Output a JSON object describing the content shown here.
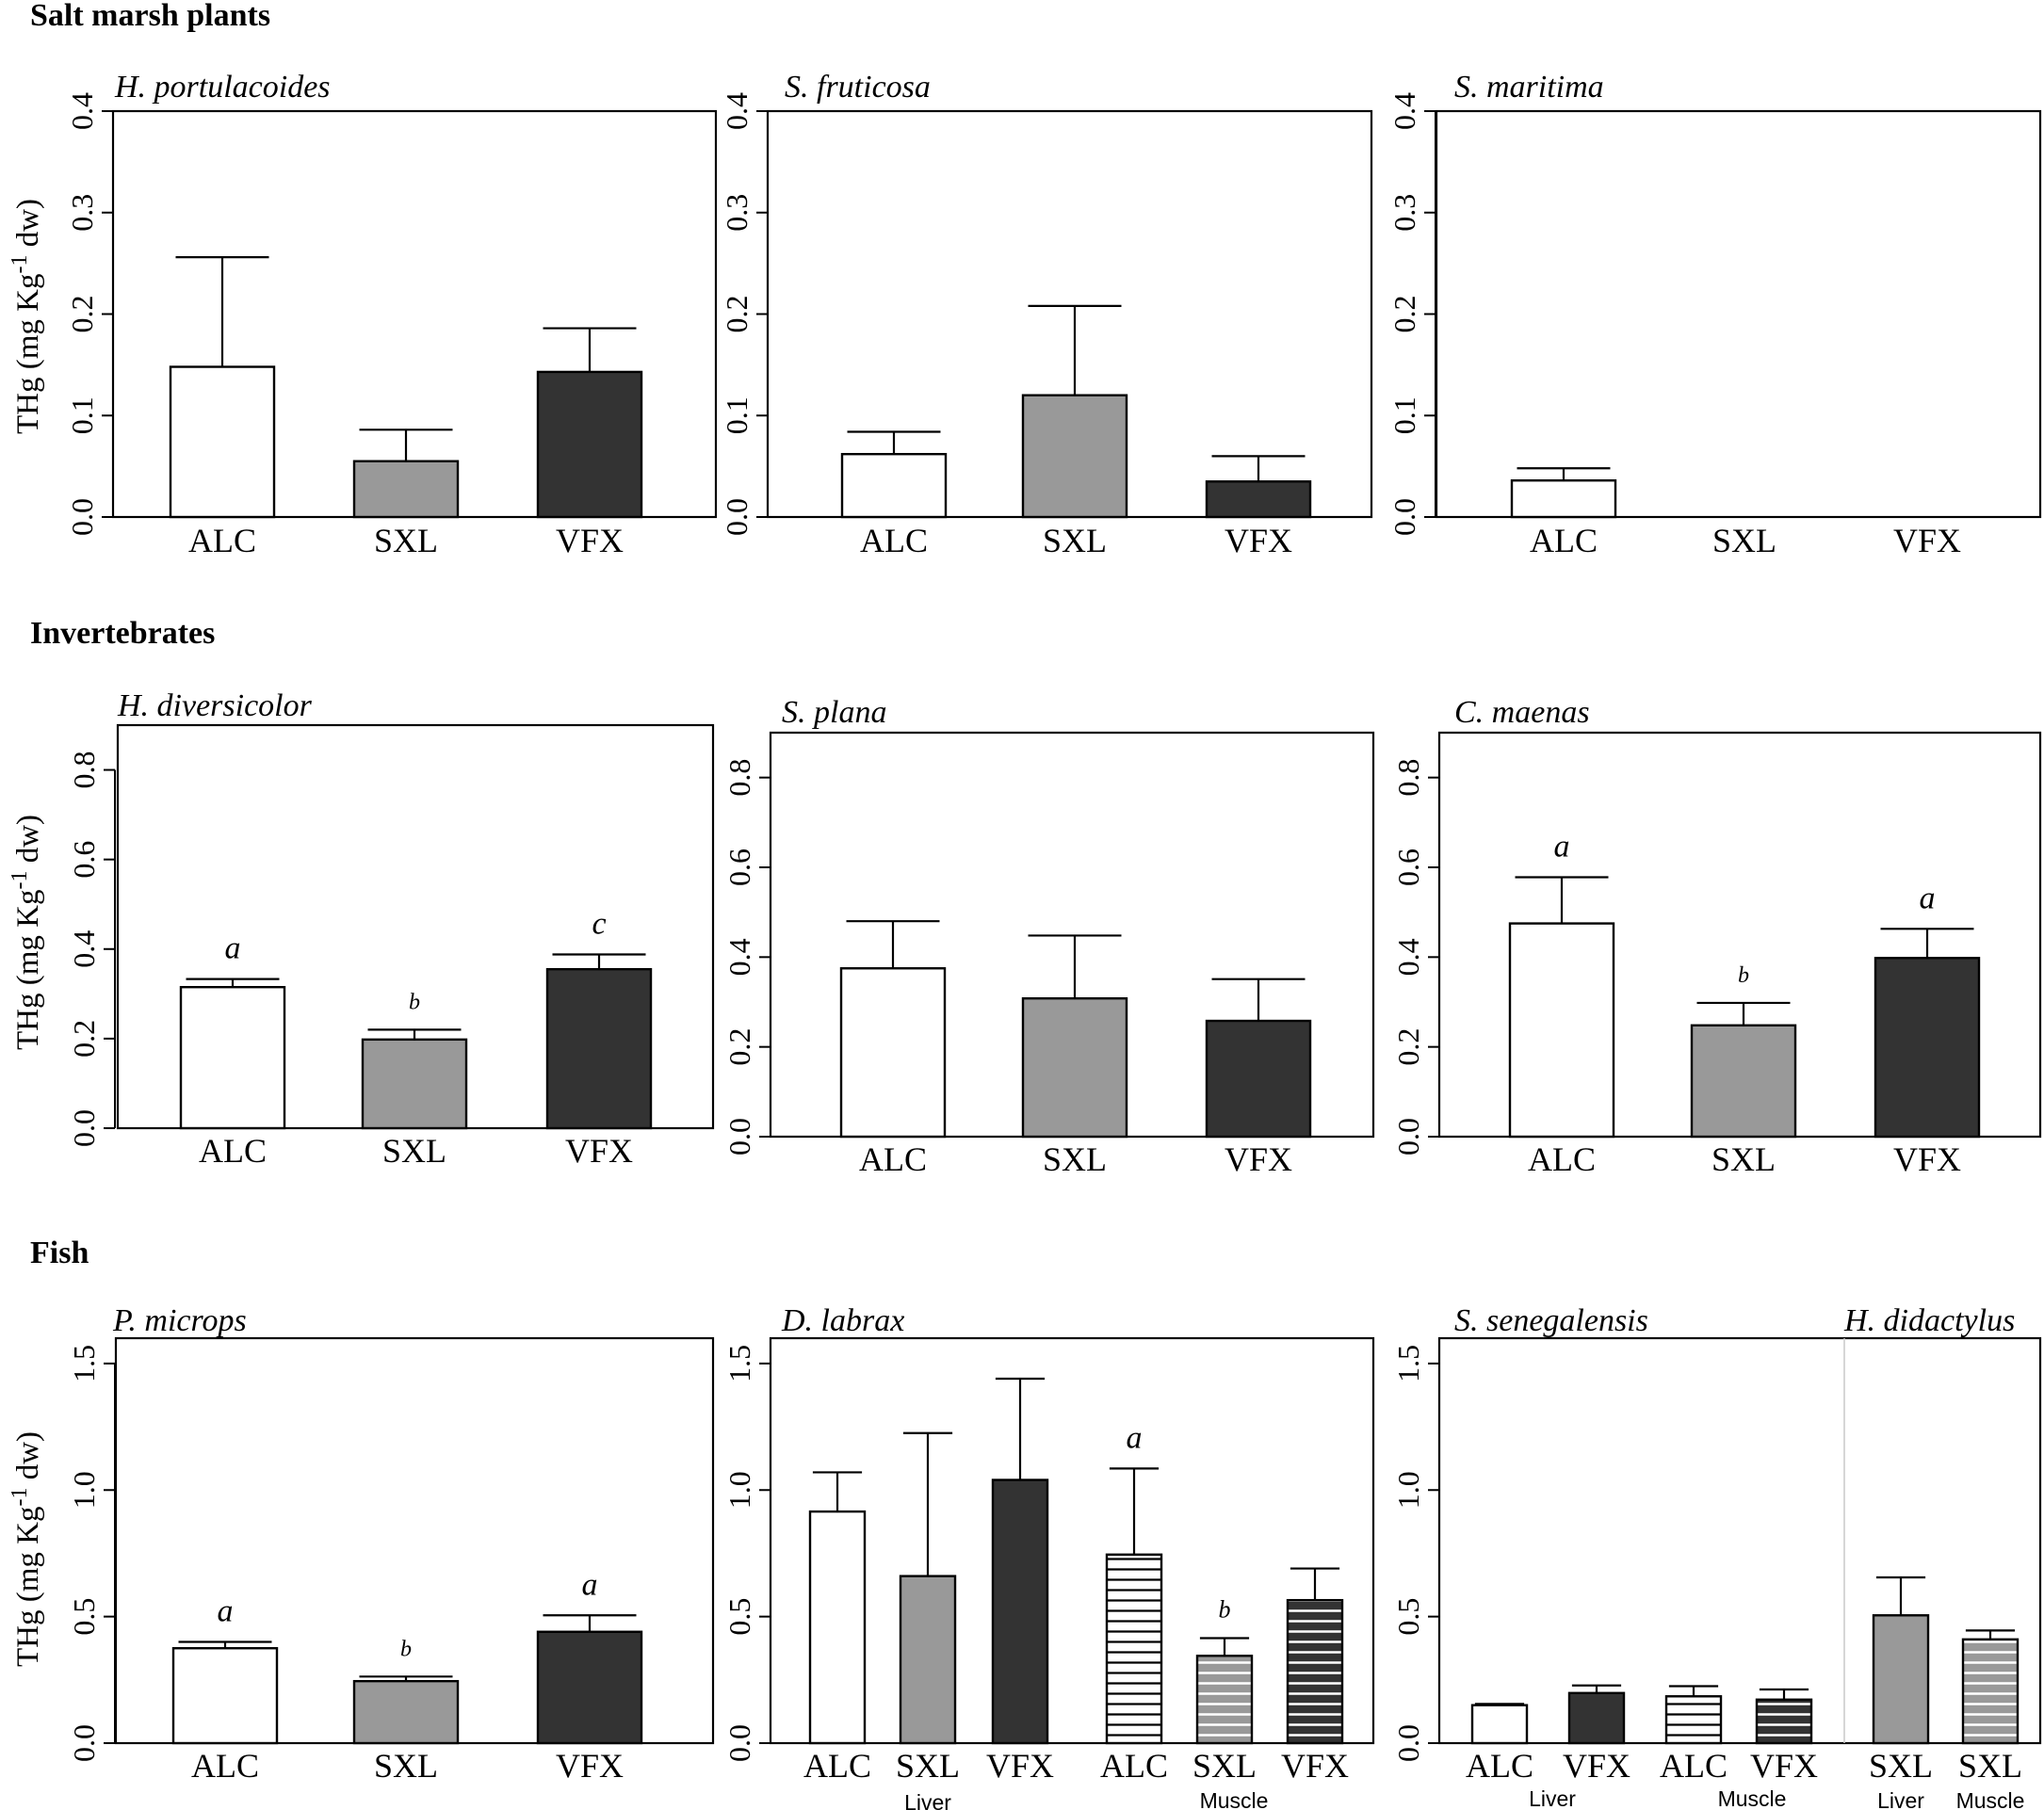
{
  "colors": {
    "ALC": "#ffffff",
    "SXL": "#999999",
    "VFX": "#333333",
    "text": "#000000"
  },
  "sections": {
    "plants": "Salt marsh plants",
    "invertebrates": "Invertebrates",
    "fish": "Fish"
  },
  "chart_data": [
    {
      "type": "bar",
      "title": "H. portulacoides",
      "ylabel": "THg (mg Kg-1 dw)",
      "ylim": [
        0,
        0.4
      ],
      "yticks": [
        "0.0",
        "0.1",
        "0.2",
        "0.3",
        "0.4"
      ],
      "categories": [
        "ALC",
        "SXL",
        "VFX"
      ],
      "values": [
        0.148,
        0.055,
        0.143
      ],
      "errors": [
        0.108,
        0.031,
        0.043
      ],
      "fills": [
        "white",
        "gray",
        "dark"
      ],
      "sig": [
        "",
        "",
        ""
      ]
    },
    {
      "type": "bar",
      "title": "S. fruticosa",
      "ylim": [
        0,
        0.4
      ],
      "yticks": [
        "0.0",
        "0.1",
        "0.2",
        "0.3",
        "0.4"
      ],
      "categories": [
        "ALC",
        "SXL",
        "VFX"
      ],
      "values": [
        0.062,
        0.12,
        0.035
      ],
      "errors": [
        0.022,
        0.088,
        0.025
      ],
      "fills": [
        "white",
        "gray",
        "dark"
      ],
      "sig": [
        "",
        "",
        ""
      ]
    },
    {
      "type": "bar",
      "title": "S. maritima",
      "ylim": [
        0,
        0.4
      ],
      "yticks": [
        "0.0",
        "0.1",
        "0.2",
        "0.3",
        "0.4"
      ],
      "categories": [
        "ALC",
        "SXL",
        "VFX"
      ],
      "values": [
        0.036,
        null,
        null
      ],
      "errors": [
        0.012,
        null,
        null
      ],
      "fills": [
        "white",
        "gray",
        "dark"
      ],
      "sig": [
        "",
        "",
        ""
      ]
    },
    {
      "type": "bar",
      "title": "H. diversicolor",
      "ylabel": "THg (mg Kg-1 dw)",
      "ylim": [
        0,
        0.9
      ],
      "yticks": [
        "0.0",
        "0.2",
        "0.4",
        "0.6",
        "0.8"
      ],
      "categories": [
        "ALC",
        "SXL",
        "VFX"
      ],
      "values": [
        0.315,
        0.198,
        0.355
      ],
      "errors": [
        0.018,
        0.022,
        0.033
      ],
      "fills": [
        "white",
        "gray",
        "dark"
      ],
      "sig": [
        "a",
        "b",
        "c"
      ]
    },
    {
      "type": "bar",
      "title": "S. plana",
      "ylim": [
        0,
        0.9
      ],
      "yticks": [
        "0.0",
        "0.2",
        "0.4",
        "0.6",
        "0.8"
      ],
      "categories": [
        "ALC",
        "SXL",
        "VFX"
      ],
      "values": [
        0.375,
        0.308,
        0.258
      ],
      "errors": [
        0.105,
        0.14,
        0.093
      ],
      "fills": [
        "white",
        "gray",
        "dark"
      ],
      "sig": [
        "",
        "",
        ""
      ]
    },
    {
      "type": "bar",
      "title": "C. maenas",
      "ylim": [
        0,
        0.9
      ],
      "yticks": [
        "0.0",
        "0.2",
        "0.4",
        "0.6",
        "0.8"
      ],
      "categories": [
        "ALC",
        "SXL",
        "VFX"
      ],
      "values": [
        0.475,
        0.248,
        0.398
      ],
      "errors": [
        0.103,
        0.05,
        0.065
      ],
      "fills": [
        "white",
        "gray",
        "dark"
      ],
      "sig": [
        "a",
        "b",
        "a"
      ]
    },
    {
      "type": "bar",
      "title": "P. microps",
      "ylabel": "THg (mg Kg-1 dw)",
      "ylim": [
        0,
        1.6
      ],
      "yticks": [
        "0.0",
        "0.5",
        "1.0",
        "1.5"
      ],
      "categories": [
        "ALC",
        "SXL",
        "VFX"
      ],
      "values": [
        0.375,
        0.245,
        0.44
      ],
      "errors": [
        0.025,
        0.018,
        0.065
      ],
      "fills": [
        "white",
        "gray",
        "dark"
      ],
      "sig": [
        "a",
        "b",
        "a"
      ]
    },
    {
      "type": "bar",
      "title": "D. labrax",
      "ylim": [
        0,
        1.6
      ],
      "yticks": [
        "0.0",
        "0.5",
        "1.0",
        "1.5"
      ],
      "categories": [
        "ALC",
        "SXL",
        "VFX",
        "ALC",
        "SXL",
        "VFX"
      ],
      "groups": [
        "Liver",
        "Muscle"
      ],
      "values": [
        0.915,
        0.66,
        1.04,
        0.745,
        0.345,
        0.565
      ],
      "errors": [
        0.155,
        0.565,
        0.4,
        0.34,
        0.07,
        0.125
      ],
      "fills": [
        "white",
        "gray",
        "dark",
        "hwhite",
        "hgray",
        "hdark"
      ],
      "sig": [
        "",
        "",
        "",
        "a",
        "b",
        ""
      ]
    },
    {
      "type": "bar",
      "title": "S. senegalensis",
      "title2": "H. didactylus",
      "ylim": [
        0,
        1.6
      ],
      "yticks": [
        "0.0",
        "0.5",
        "1.0",
        "1.5"
      ],
      "categories": [
        "ALC",
        "VFX",
        "ALC",
        "VFX",
        "SXL",
        "SXL"
      ],
      "groups": [
        "Liver",
        "Muscle",
        "Liver",
        "Muscle"
      ],
      "values": [
        0.15,
        0.198,
        0.185,
        0.172,
        0.505,
        0.41
      ],
      "errors": [
        0.005,
        0.03,
        0.04,
        0.04,
        0.15,
        0.035
      ],
      "fills": [
        "white",
        "dark",
        "hwhite",
        "hdark",
        "gray",
        "hgray"
      ],
      "sig": [
        "",
        "",
        "",
        "",
        "",
        ""
      ]
    }
  ]
}
